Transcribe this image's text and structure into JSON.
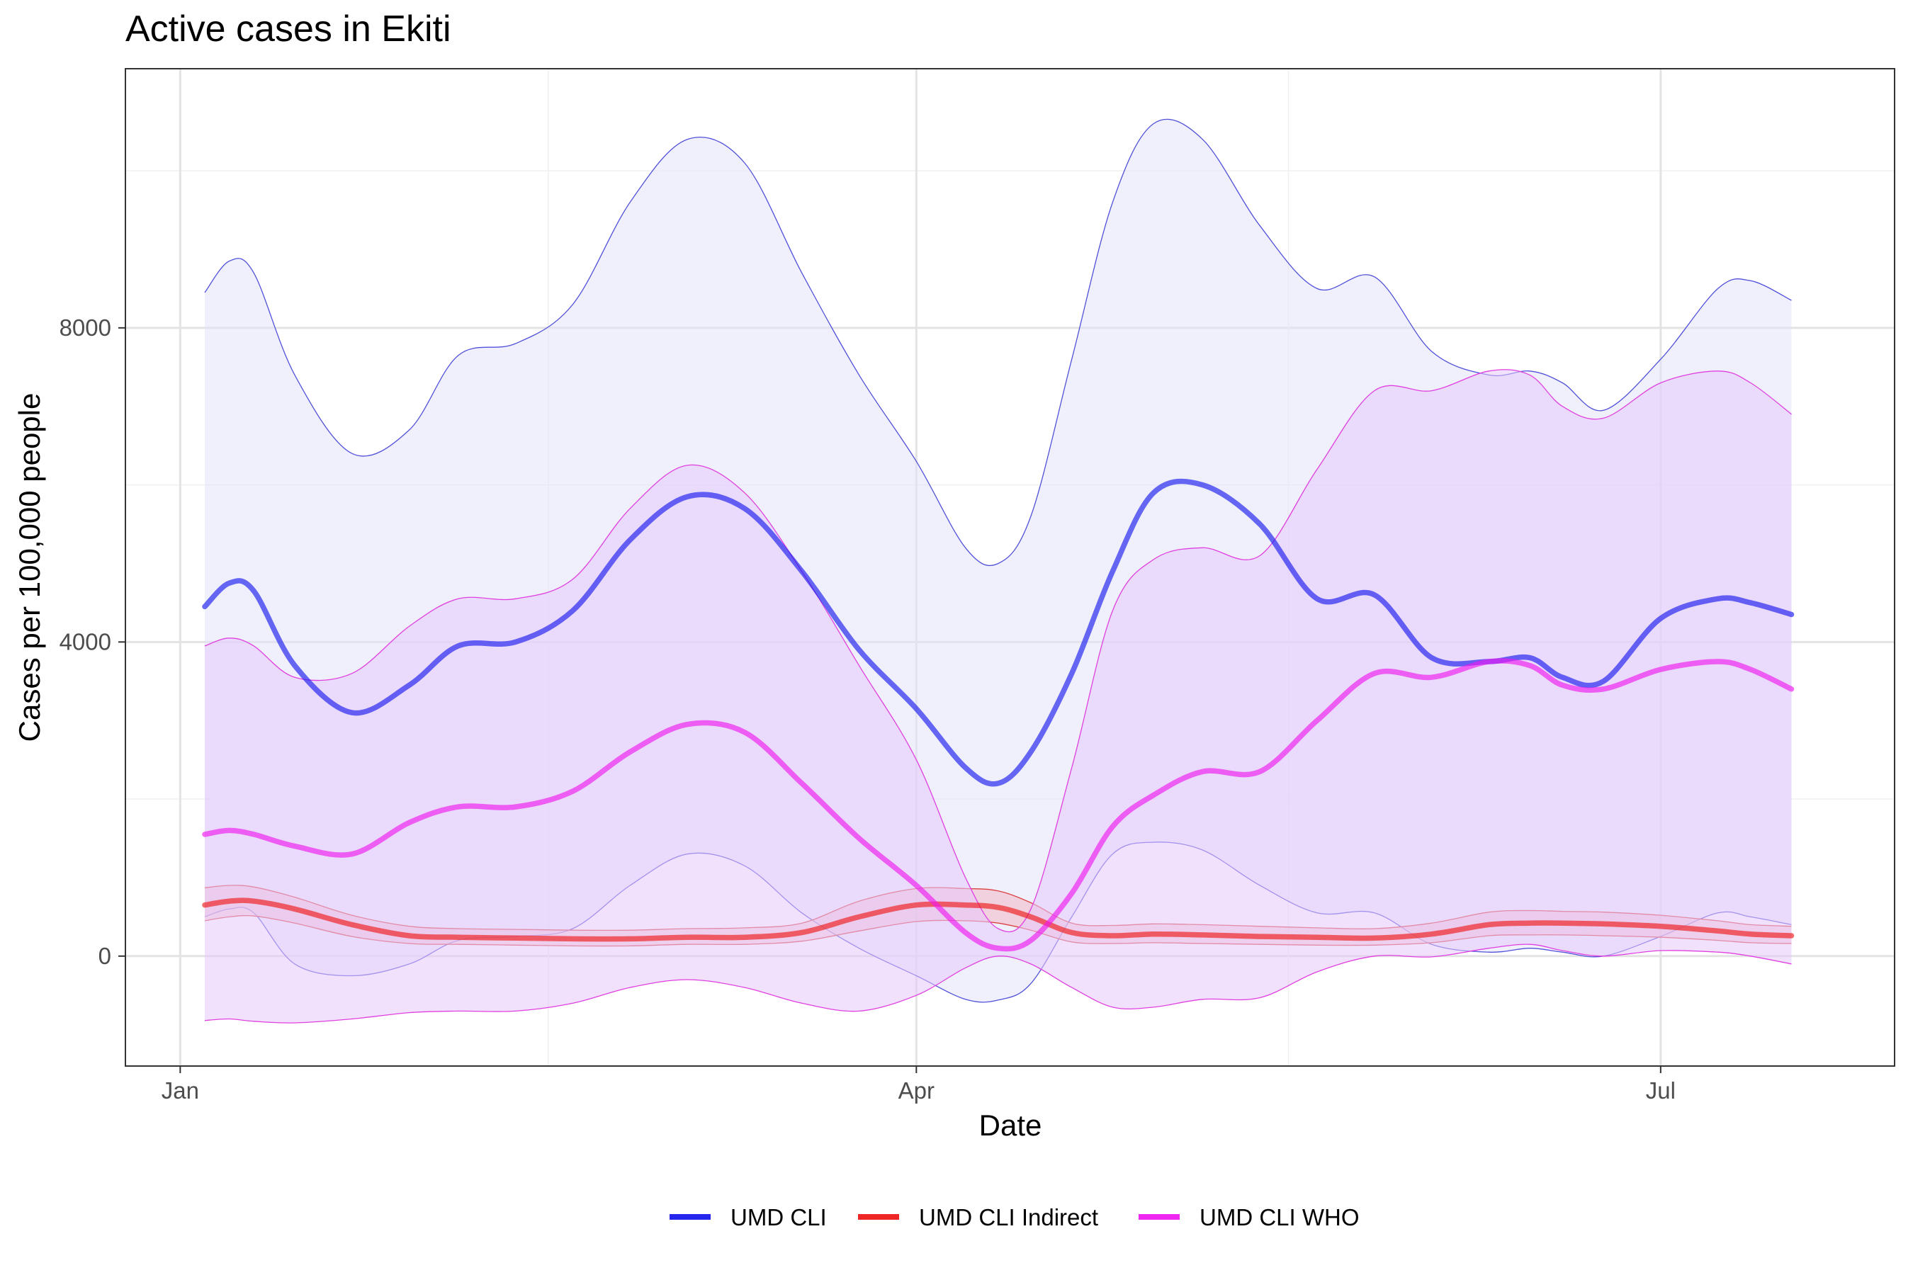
{
  "chart_data": {
    "type": "line",
    "title": "Active cases in Ekiti",
    "xlabel": "Date",
    "ylabel": "Cases per 100,000 people",
    "x_ticks": [
      {
        "label": "Jan",
        "day": 0
      },
      {
        "label": "Apr",
        "day": 90
      },
      {
        "label": "Jul",
        "day": 181
      }
    ],
    "y_ticks": [
      0,
      4000,
      8000
    ],
    "xlim": [
      -6.7,
      209.6
    ],
    "ylim": [
      -1400,
      11300
    ],
    "legend_position": "bottom",
    "series": [
      {
        "name": "UMD CLI",
        "color": "#1a1aee",
        "band_fill": "#e3e3fc",
        "band_stroke": "#5151d9",
        "x": [
          3,
          6,
          9,
          14,
          21,
          28,
          34,
          41,
          48,
          55,
          62,
          69,
          76,
          83,
          90,
          96,
          100,
          104,
          109,
          114,
          119,
          125,
          132,
          139,
          146,
          153,
          160,
          165,
          169,
          174,
          181,
          188,
          192,
          197
        ],
        "mid": [
          4450,
          4750,
          4650,
          3700,
          3100,
          3450,
          3950,
          4000,
          4400,
          5300,
          5850,
          5700,
          4900,
          3900,
          3150,
          2400,
          2200,
          2600,
          3600,
          4900,
          5900,
          6000,
          5500,
          4550,
          4600,
          3800,
          3750,
          3800,
          3550,
          3500,
          4300,
          4550,
          4500,
          4350
        ],
        "upper": [
          8450,
          8850,
          8700,
          7400,
          6400,
          6700,
          7650,
          7800,
          8300,
          9600,
          10400,
          10100,
          8700,
          7400,
          6300,
          5200,
          5000,
          5600,
          7600,
          9600,
          10600,
          10400,
          9300,
          8500,
          8650,
          7700,
          7400,
          7450,
          7300,
          6950,
          7600,
          8500,
          8600,
          8350
        ],
        "lower": [
          500,
          600,
          550,
          -100,
          -250,
          -100,
          200,
          250,
          350,
          900,
          1300,
          1150,
          550,
          100,
          -250,
          -550,
          -560,
          -350,
          500,
          1300,
          1450,
          1350,
          900,
          550,
          550,
          150,
          50,
          100,
          50,
          0,
          250,
          550,
          500,
          400
        ]
      },
      {
        "name": "UMD CLI Indirect",
        "color": "#ee1a1a",
        "band_fill": "#f3b8c3",
        "band_stroke": "#dd4040",
        "x": [
          3,
          6,
          9,
          14,
          21,
          28,
          34,
          41,
          48,
          55,
          62,
          69,
          76,
          83,
          90,
          96,
          100,
          104,
          109,
          114,
          119,
          125,
          132,
          139,
          146,
          153,
          160,
          165,
          169,
          174,
          181,
          188,
          192,
          197
        ],
        "mid": [
          650,
          700,
          700,
          600,
          400,
          260,
          240,
          230,
          220,
          220,
          240,
          240,
          300,
          500,
          650,
          650,
          620,
          500,
          300,
          260,
          280,
          270,
          250,
          240,
          230,
          280,
          400,
          420,
          420,
          410,
          380,
          320,
          280,
          260
        ],
        "upper": [
          870,
          900,
          880,
          750,
          520,
          380,
          350,
          340,
          330,
          330,
          350,
          360,
          420,
          700,
          860,
          860,
          830,
          680,
          420,
          390,
          410,
          400,
          380,
          360,
          350,
          420,
          560,
          580,
          570,
          560,
          520,
          450,
          400,
          380
        ],
        "lower": [
          450,
          500,
          510,
          420,
          250,
          160,
          150,
          140,
          130,
          130,
          150,
          150,
          190,
          320,
          440,
          450,
          420,
          330,
          180,
          160,
          170,
          160,
          150,
          140,
          140,
          170,
          260,
          270,
          270,
          260,
          240,
          200,
          170,
          160
        ]
      },
      {
        "name": "UMD CLI WHO",
        "color": "#ee1aee",
        "band_fill": "#e6c8fb",
        "band_stroke": "#e040e0",
        "x": [
          3,
          6,
          9,
          14,
          21,
          28,
          34,
          41,
          48,
          55,
          62,
          69,
          76,
          83,
          90,
          96,
          100,
          104,
          109,
          114,
          119,
          125,
          132,
          139,
          146,
          153,
          160,
          165,
          169,
          174,
          181,
          188,
          192,
          197
        ],
        "mid": [
          1550,
          1600,
          1550,
          1400,
          1300,
          1700,
          1900,
          1900,
          2100,
          2600,
          2950,
          2850,
          2200,
          1500,
          900,
          300,
          100,
          200,
          800,
          1650,
          2050,
          2350,
          2350,
          3000,
          3600,
          3550,
          3750,
          3700,
          3450,
          3400,
          3650,
          3750,
          3650,
          3400
        ],
        "upper": [
          3950,
          4050,
          3950,
          3550,
          3600,
          4200,
          4550,
          4550,
          4800,
          5700,
          6250,
          5900,
          4900,
          3700,
          2500,
          1000,
          350,
          600,
          2400,
          4400,
          5050,
          5200,
          5100,
          6200,
          7200,
          7200,
          7450,
          7400,
          7000,
          6850,
          7300,
          7450,
          7300,
          6900
        ],
        "lower": [
          -820,
          -800,
          -830,
          -850,
          -800,
          -720,
          -700,
          -700,
          -600,
          -400,
          -300,
          -400,
          -600,
          -700,
          -500,
          -150,
          0,
          -100,
          -400,
          -650,
          -650,
          -550,
          -530,
          -200,
          0,
          -10,
          100,
          150,
          70,
          0,
          70,
          50,
          0,
          -100
        ]
      }
    ]
  }
}
